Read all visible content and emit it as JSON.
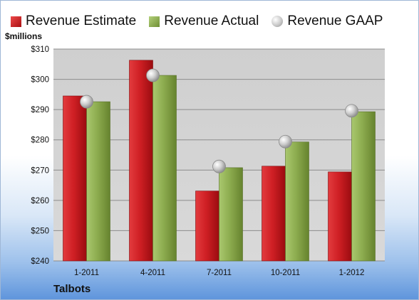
{
  "legend": {
    "estimate": "Revenue Estimate",
    "actual": "Revenue Actual",
    "gaap": "Revenue GAAP"
  },
  "unit_label": "$millions",
  "company": "Talbots",
  "colors": {
    "estimate": "#c81e22",
    "actual": "#8faf4f",
    "gaap": "#c0c0c0",
    "plot_background": "#d2d2d2"
  },
  "chart_data": {
    "type": "bar",
    "categories": [
      "1-2011",
      "4-2011",
      "7-2011",
      "10-2011",
      "1-2012"
    ],
    "series": [
      {
        "name": "Revenue Estimate",
        "values": [
          294.5,
          306.3,
          263.1,
          271.3,
          269.4
        ]
      },
      {
        "name": "Revenue Actual",
        "values": [
          292.6,
          301.3,
          270.8,
          279.3,
          289.3
        ]
      },
      {
        "name": "Revenue GAAP",
        "values": [
          292.6,
          301.3,
          271.2,
          279.4,
          289.6
        ]
      }
    ],
    "ylim": [
      240,
      310
    ],
    "yticks": [
      240,
      250,
      260,
      270,
      280,
      290,
      300,
      310
    ],
    "ytick_labels": [
      "$240",
      "$250",
      "$260",
      "$270",
      "$280",
      "$290",
      "$300",
      "$310"
    ],
    "ylabel": "$millions",
    "grid": true,
    "legend_position": "top"
  }
}
